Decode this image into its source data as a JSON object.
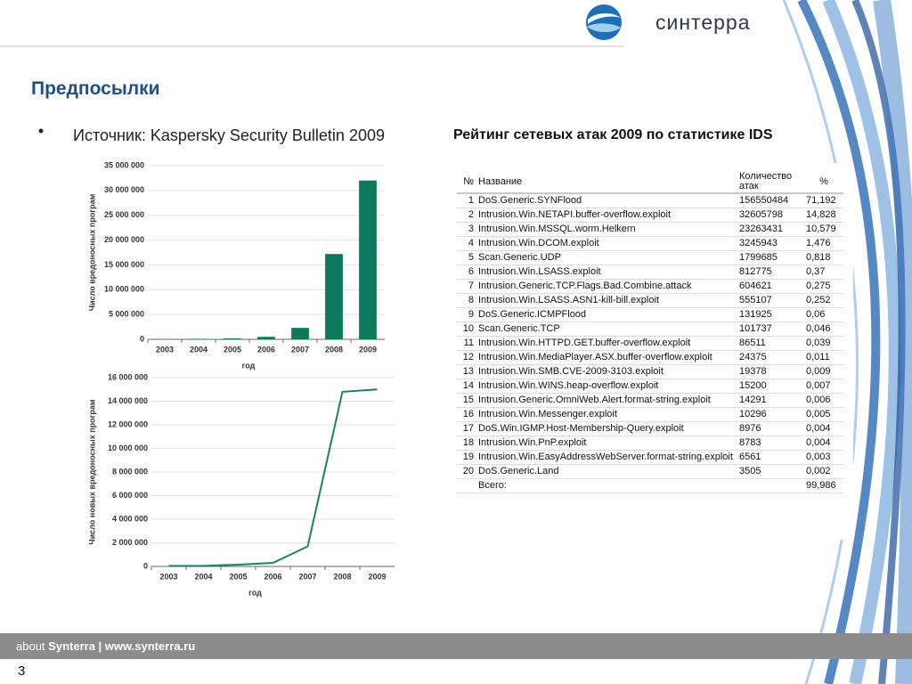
{
  "logo": "синтерра",
  "title": "Предпосылки",
  "bullet": "Источник: Kaspersky Security Bulletin 2009",
  "chart_data": [
    {
      "type": "bar",
      "ylabel": "Число вредоносных програм",
      "xlabel": "год",
      "categories": [
        "2003",
        "2004",
        "2005",
        "2006",
        "2007",
        "2008",
        "2009"
      ],
      "values": [
        50000,
        100000,
        200000,
        500000,
        2300000,
        17200000,
        32000000
      ],
      "color": "#0b7a5b",
      "grid": true,
      "ylim": [
        0,
        35000000
      ],
      "yticks": [
        {
          "value": 0,
          "label": "0"
        },
        {
          "value": 5000000,
          "label": "5 000 000"
        },
        {
          "value": 10000000,
          "label": "10 000 000"
        },
        {
          "value": 15000000,
          "label": "15 000 000"
        },
        {
          "value": 20000000,
          "label": "20 000 000"
        },
        {
          "value": 25000000,
          "label": "25 000 000"
        },
        {
          "value": 30000000,
          "label": "30 000 000"
        },
        {
          "value": 35000000,
          "label": "35 000 000"
        }
      ]
    },
    {
      "type": "line",
      "ylabel": "Число новых вредоносных програм",
      "xlabel": "год",
      "categories": [
        "2003",
        "2004",
        "2005",
        "2006",
        "2007",
        "2008",
        "2009"
      ],
      "values": [
        50000,
        50000,
        150000,
        300000,
        1700000,
        14800000,
        15000000
      ],
      "color": "#1e7f62",
      "grid": true,
      "ylim": [
        0,
        16000000
      ],
      "yticks": [
        {
          "value": 0,
          "label": "0"
        },
        {
          "value": 2000000,
          "label": "2 000 000"
        },
        {
          "value": 4000000,
          "label": "4 000 000"
        },
        {
          "value": 6000000,
          "label": "6 000 000"
        },
        {
          "value": 8000000,
          "label": "8 000 000"
        },
        {
          "value": 10000000,
          "label": "10 000 000"
        },
        {
          "value": 12000000,
          "label": "12 000 000"
        },
        {
          "value": 14000000,
          "label": "14 000 000"
        },
        {
          "value": 16000000,
          "label": "16 000 000"
        }
      ]
    }
  ],
  "table": {
    "title": "Рейтинг сетевых атак 2009 по статистике IDS",
    "header": [
      "№",
      "Название",
      "Количество атак",
      "%"
    ],
    "rows": [
      [
        1,
        "DoS.Generic.SYNFlood",
        156550484,
        "71,192"
      ],
      [
        2,
        "Intrusion.Win.NETAPI.buffer-overflow.exploit",
        32605798,
        "14,828"
      ],
      [
        3,
        "Intrusion.Win.MSSQL.worm.Helkern",
        23263431,
        "10,579"
      ],
      [
        4,
        "Intrusion.Win.DCOM.exploit",
        3245943,
        "1,476"
      ],
      [
        5,
        "Scan.Generic.UDP",
        1799685,
        "0,818"
      ],
      [
        6,
        "Intrusion.Win.LSASS.exploit",
        812775,
        "0,37"
      ],
      [
        7,
        "Intrusion.Generic.TCP.Flags.Bad.Combine.attack",
        604621,
        "0,275"
      ],
      [
        8,
        "Intrusion.Win.LSASS.ASN1-kill-bill.exploit",
        555107,
        "0,252"
      ],
      [
        9,
        "DoS.Generic.ICMPFlood",
        131925,
        "0,06"
      ],
      [
        10,
        "Scan.Generic.TCP",
        101737,
        "0,046"
      ],
      [
        11,
        "Intrusion.Win.HTTPD.GET.buffer-overflow.exploit",
        86511,
        "0,039"
      ],
      [
        12,
        "Intrusion.Win.MediaPlayer.ASX.buffer-overflow.exploit",
        24375,
        "0,011"
      ],
      [
        13,
        "Intrusion.Win.SMB.CVE-2009-3103.exploit",
        19378,
        "0,009"
      ],
      [
        14,
        "Intrusion.Win.WINS.heap-overflow.exploit",
        15200,
        "0,007"
      ],
      [
        15,
        "Intrusion.Generic.OmniWeb.Alert.format-string.exploit",
        14291,
        "0,006"
      ],
      [
        16,
        "Intrusion.Win.Messenger.exploit",
        10296,
        "0,005"
      ],
      [
        17,
        "DoS.Win.IGMP.Host-Membership-Query.exploit",
        8976,
        "0,004"
      ],
      [
        18,
        "Intrusion.Win.PnP.exploit",
        8783,
        "0,004"
      ],
      [
        19,
        "Intrusion.Win.EasyAddressWebServer.format-string.exploit",
        6561,
        "0,003"
      ],
      [
        20,
        "DoS.Generic.Land",
        3505,
        "0,002"
      ]
    ],
    "total": {
      "label": "Всего:",
      "percent": "99,986"
    }
  },
  "footer": {
    "about": "about",
    "site": "Synterra | www.synterra.ru"
  },
  "page": "3"
}
